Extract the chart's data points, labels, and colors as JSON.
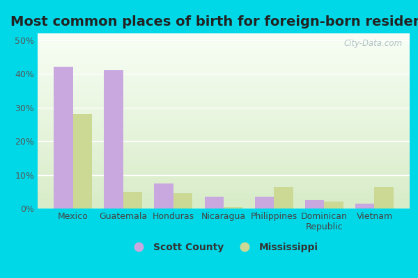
{
  "title": "Most common places of birth for foreign-born residents",
  "categories": [
    "Mexico",
    "Guatemala",
    "Honduras",
    "Nicaragua",
    "Philippines",
    "Dominican\nRepublic",
    "Vietnam"
  ],
  "scott_county": [
    42,
    41,
    7.5,
    3.5,
    3.5,
    2.5,
    1.5
  ],
  "mississippi": [
    28,
    5,
    4.5,
    0.5,
    6.5,
    2.0,
    6.5
  ],
  "scott_color": "#c9a8e0",
  "mississippi_color": "#ccd994",
  "bar_width": 0.38,
  "ylim": [
    0,
    52
  ],
  "yticks": [
    0,
    10,
    20,
    30,
    40,
    50
  ],
  "ytick_labels": [
    "0%",
    "10%",
    "20%",
    "30%",
    "40%",
    "50%"
  ],
  "legend_scott": "Scott County",
  "legend_ms": "Mississippi",
  "bg_outer": "#00d8e8",
  "bg_plot": "#e8f5e0",
  "watermark": "City-Data.com",
  "title_fontsize": 14,
  "tick_fontsize": 9,
  "legend_fontsize": 10
}
